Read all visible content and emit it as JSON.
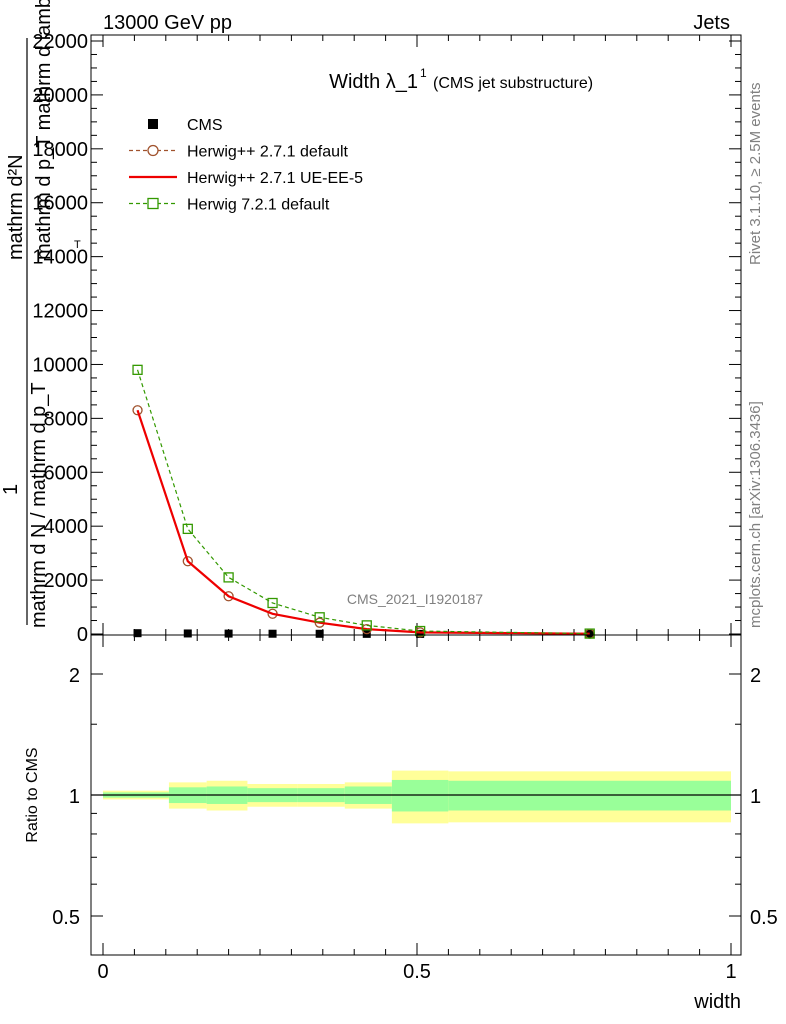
{
  "header": {
    "left": "13000 GeV pp",
    "right": "Jets"
  },
  "side": {
    "rivet": "Rivet 3.1.10, ≥ 2.5M events",
    "mcplots": "mcplots.cern.ch [arXiv:1306.3436]"
  },
  "watermark": "CMS_2021_I1920187",
  "chart_data": [
    {
      "type": "line",
      "title_main": "Width λ_1",
      "title_sup": "1",
      "title_sub": "(CMS jet substructure)",
      "ylabel_line1": "mathrm d²N",
      "ylabel_line2": "mathrm d p_T mathrm d lambda",
      "ylabel_line3": "1",
      "ylabel_line4": "mathrm d N / mathrm d p_T",
      "xlabel": "width",
      "ylim": [
        0,
        22000
      ],
      "xlim": [
        0,
        1
      ],
      "yticks": [
        0,
        2000,
        4000,
        6000,
        8000,
        10000,
        12000,
        14000,
        16000,
        18000,
        20000,
        22000
      ],
      "ytick_labels": [
        "0",
        "2000",
        "4000",
        "6000",
        "8000",
        "10000",
        "12000",
        "14000",
        "16000",
        "18000",
        "20000",
        "22000"
      ],
      "legend_position": "top-left",
      "series": [
        {
          "name": "CMS",
          "style": "marker-square",
          "color": "#000000",
          "x": [
            0.055,
            0.135,
            0.2,
            0.27,
            0.345,
            0.42,
            0.505,
            0.775
          ],
          "y": [
            30,
            20,
            15,
            10,
            8,
            5,
            3,
            1
          ]
        },
        {
          "name": "Herwig++ 2.7.1 default",
          "style": "dashed-circle",
          "color": "#a0522d",
          "x": [
            0.055,
            0.135,
            0.2,
            0.27,
            0.345,
            0.42,
            0.505,
            0.775
          ],
          "y": [
            8300,
            2700,
            1400,
            750,
            420,
            180,
            60,
            10
          ]
        },
        {
          "name": "Herwig++ 2.7.1 UE-EE-5",
          "style": "solid",
          "color": "#ee0000",
          "x": [
            0.055,
            0.135,
            0.2,
            0.27,
            0.345,
            0.42,
            0.505,
            0.775
          ],
          "y": [
            8300,
            2700,
            1400,
            750,
            420,
            180,
            60,
            10
          ]
        },
        {
          "name": "Herwig 7.2.1 default",
          "style": "dashed-square",
          "color": "#339900",
          "x": [
            0.055,
            0.135,
            0.2,
            0.27,
            0.345,
            0.42,
            0.505,
            0.775
          ],
          "y": [
            9800,
            3900,
            2100,
            1150,
            620,
            320,
            110,
            15
          ]
        }
      ]
    },
    {
      "type": "area",
      "ylabel": "Ratio to CMS",
      "xlabel": "width",
      "ylim": [
        0.35,
        2.3
      ],
      "xlim": [
        0,
        1
      ],
      "yticks": [
        0.5,
        1,
        2
      ],
      "ytick_labels": [
        "0.5",
        "1",
        "2"
      ],
      "xticks": [
        0,
        0.5,
        1
      ],
      "xtick_labels": [
        "0",
        "0.5",
        "1"
      ],
      "bins": [
        {
          "x0": 0.0,
          "x1": 0.105,
          "stat": [
            0.985,
            1.015
          ],
          "total": [
            0.975,
            1.025
          ]
        },
        {
          "x0": 0.105,
          "x1": 0.165,
          "stat": [
            0.955,
            1.045
          ],
          "total": [
            0.925,
            1.075
          ]
        },
        {
          "x0": 0.165,
          "x1": 0.23,
          "stat": [
            0.95,
            1.05
          ],
          "total": [
            0.915,
            1.085
          ]
        },
        {
          "x0": 0.23,
          "x1": 0.31,
          "stat": [
            0.96,
            1.04
          ],
          "total": [
            0.935,
            1.065
          ]
        },
        {
          "x0": 0.31,
          "x1": 0.385,
          "stat": [
            0.96,
            1.04
          ],
          "total": [
            0.935,
            1.065
          ]
        },
        {
          "x0": 0.385,
          "x1": 0.46,
          "stat": [
            0.95,
            1.05
          ],
          "total": [
            0.925,
            1.075
          ]
        },
        {
          "x0": 0.46,
          "x1": 0.55,
          "stat": [
            0.91,
            1.09
          ],
          "total": [
            0.85,
            1.15
          ]
        },
        {
          "x0": 0.55,
          "x1": 1.0,
          "stat": [
            0.915,
            1.085
          ],
          "total": [
            0.855,
            1.145
          ]
        }
      ],
      "colors": {
        "stat": "#99ff99",
        "total": "#ffff99",
        "ref": "#000000"
      }
    }
  ]
}
